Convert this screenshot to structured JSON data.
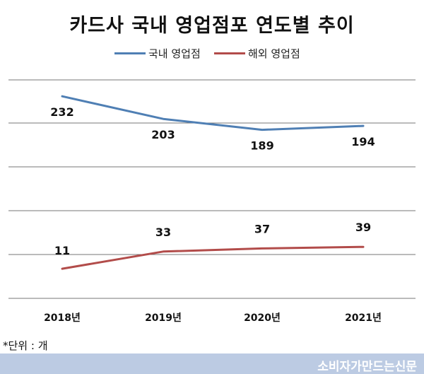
{
  "chart_data": {
    "type": "line",
    "title": "카드사 국내 영업점포 연도별 추이",
    "categories": [
      "2018년",
      "2019년",
      "2020년",
      "2021년"
    ],
    "series": [
      {
        "name": "국내 영업점",
        "values": [
          232,
          203,
          189,
          194
        ],
        "color": "#4f7fb4",
        "labels": [
          "232",
          "203",
          "189",
          "194"
        ]
      },
      {
        "name": "해외 영업점",
        "values": [
          11,
          33,
          37,
          39
        ],
        "color": "#b24c4a",
        "labels": [
          "11",
          "33",
          "37",
          "39"
        ]
      }
    ],
    "ylim": [
      -27,
      253
    ],
    "grid": true,
    "legend_position": "top"
  },
  "unit_note": "*단위 : 개",
  "footer": {
    "brand": "소비자가만드는신문"
  }
}
